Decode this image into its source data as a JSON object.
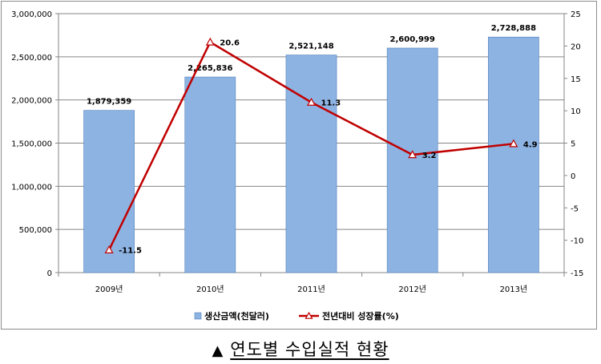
{
  "chart_data": {
    "type": "bar",
    "categories": [
      "2009년",
      "2010년",
      "2011년",
      "2012년",
      "2013년"
    ],
    "series": [
      {
        "name": "생산금액(천달러)",
        "type": "bar",
        "axis": "left",
        "values": [
          1879359,
          2265836,
          2521148,
          2600999,
          2728888
        ],
        "labels": [
          "1,879,359",
          "2,265,836",
          "2,521,148",
          "2,600,999",
          "2,728,888"
        ],
        "color": "#8db3e2"
      },
      {
        "name": "전년대비 성장률(%)",
        "type": "line",
        "axis": "right",
        "values": [
          -11.5,
          20.6,
          11.3,
          3.2,
          4.9
        ],
        "labels": [
          "-11.5",
          "20.6",
          "11.3",
          "3.2",
          "4.9"
        ],
        "color": "#c00000",
        "marker": "triangle"
      }
    ],
    "y_left": {
      "min": 0,
      "max": 3000000,
      "ticks": [
        0,
        500000,
        1000000,
        1500000,
        2000000,
        2500000,
        3000000
      ],
      "tick_labels": [
        "0",
        "500,000",
        "1,000,000",
        "1,500,000",
        "2,000,000",
        "2,500,000",
        "3,000,000"
      ]
    },
    "y_right": {
      "min": -15,
      "max": 25,
      "ticks": [
        -15,
        -10,
        -5,
        0,
        5,
        10,
        15,
        20,
        25
      ],
      "tick_labels": [
        "-15",
        "-10",
        "-5",
        "0",
        "5",
        "10",
        "15",
        "20",
        "25"
      ]
    },
    "grid": "horizontal",
    "legend_position": "bottom"
  },
  "caption": {
    "symbol": "▲",
    "text": "연도별 수입실적 현황"
  }
}
